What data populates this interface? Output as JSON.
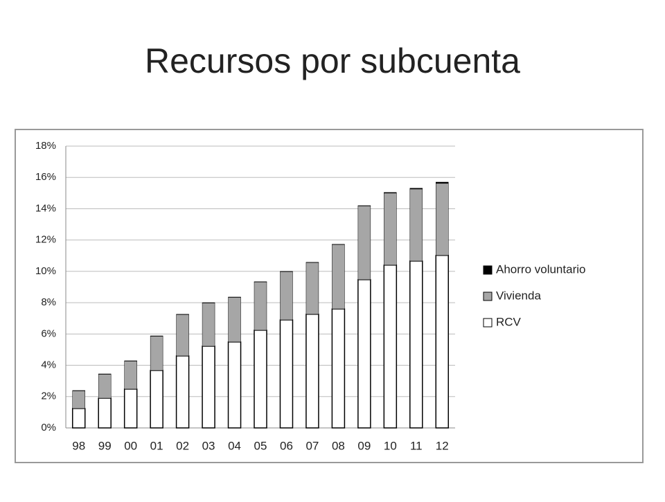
{
  "chart_data": {
    "type": "stacked_bar",
    "title": "Recursos por subcuenta",
    "categories": [
      "98",
      "99",
      "00",
      "01",
      "02",
      "03",
      "04",
      "05",
      "06",
      "07",
      "08",
      "09",
      "10",
      "11",
      "12"
    ],
    "series": [
      {
        "name": "RCV",
        "color": "#ffffff",
        "values": [
          1.24,
          1.9,
          2.48,
          3.67,
          4.6,
          5.22,
          5.49,
          6.24,
          6.9,
          7.26,
          7.6,
          9.47,
          10.4,
          10.66,
          11.02
        ]
      },
      {
        "name": "Vivienda",
        "color": "#a6a6a6",
        "values": [
          1.13,
          1.53,
          1.79,
          2.19,
          2.64,
          2.76,
          2.85,
          3.08,
          3.08,
          3.3,
          4.11,
          4.71,
          4.6,
          4.6,
          4.6
        ]
      },
      {
        "name": "Ahorro voluntario",
        "color": "#000000",
        "values": [
          0.02,
          0.02,
          0.02,
          0.02,
          0.02,
          0.02,
          0.02,
          0.02,
          0.02,
          0.02,
          0.02,
          0.02,
          0.04,
          0.05,
          0.08
        ]
      }
    ],
    "ylim": [
      0,
      18
    ],
    "yticks": [
      {
        "value": 0,
        "label": "0%"
      },
      {
        "value": 2,
        "label": "2%"
      },
      {
        "value": 4,
        "label": "4%"
      },
      {
        "value": 6,
        "label": "6%"
      },
      {
        "value": 8,
        "label": "8%"
      },
      {
        "value": 10,
        "label": "10%"
      },
      {
        "value": 12,
        "label": "12%"
      },
      {
        "value": 14,
        "label": "14%"
      },
      {
        "value": 16,
        "label": "16%"
      },
      {
        "value": 18,
        "label": "18%"
      }
    ],
    "grid": true,
    "legend": "right"
  }
}
